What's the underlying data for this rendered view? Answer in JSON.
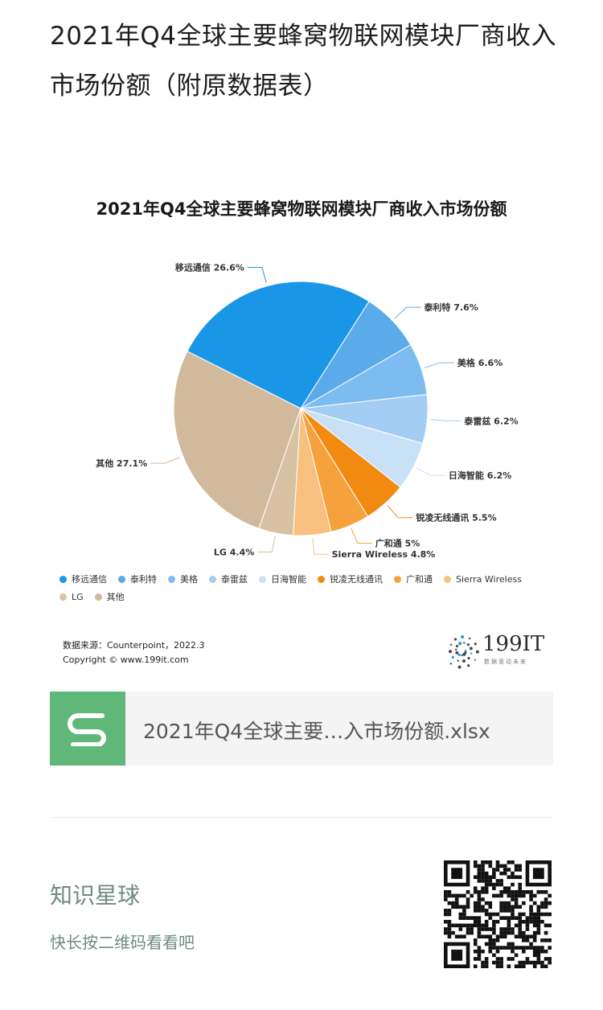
{
  "post": {
    "title": "2021年Q4全球主要蜂窝物联网模块厂商收入市场份额（附原数据表）"
  },
  "chart_data": {
    "type": "pie",
    "title": "2021年Q4全球主要蜂窝物联网模块厂商收入市场份额",
    "slices": [
      {
        "name": "移远通信",
        "value": 26.6,
        "label": "移远通信 26.6%",
        "color": "#1a96e6"
      },
      {
        "name": "泰利特",
        "value": 7.6,
        "label": "泰利特 7.6%",
        "color": "#5baaea"
      },
      {
        "name": "美格",
        "value": 6.6,
        "label": "美格 6.6%",
        "color": "#7dbcf0"
      },
      {
        "name": "泰雷兹",
        "value": 6.2,
        "label": "泰雷兹 6.2%",
        "color": "#a3cdf3"
      },
      {
        "name": "日海智能",
        "value": 6.2,
        "label": "日海智能 6.2%",
        "color": "#c8e1f7"
      },
      {
        "name": "锐凌无线通讯",
        "value": 5.5,
        "label": "锐凌无线通讯 5.5%",
        "color": "#f28a12"
      },
      {
        "name": "广和通",
        "value": 5,
        "label": "广和通 5%",
        "color": "#f6a23c"
      },
      {
        "name": "Sierra Wireless",
        "value": 4.8,
        "label": "Sierra Wireless 4.8%",
        "color": "#f8c07e"
      },
      {
        "name": "LG",
        "value": 4.4,
        "label": "LG 4.4%",
        "color": "#d9c2a4"
      },
      {
        "name": "其他",
        "value": 27.1,
        "label": "其他 27.1%",
        "color": "#d1b99c"
      }
    ],
    "legend": [
      "移远通信",
      "泰利特",
      "美格",
      "泰雷兹",
      "日海智能",
      "锐凌无线通讯",
      "广和通",
      "Sierra Wireless",
      "LG",
      "其他"
    ],
    "legend_position": "bottom",
    "source": "数据来源：Counterpoint，2022.3",
    "copyright": "Copyright © www.199it.com"
  },
  "logo": {
    "text": "199IT",
    "sub": "数据驱动未来"
  },
  "file_card": {
    "icon": "spreadsheet-s-icon",
    "name": "2021年Q4全球主要…入市场份额.xlsx"
  },
  "promo": {
    "title": "知识星球",
    "subtitle": "快长按二维码看看吧",
    "qr": "qr-code"
  }
}
